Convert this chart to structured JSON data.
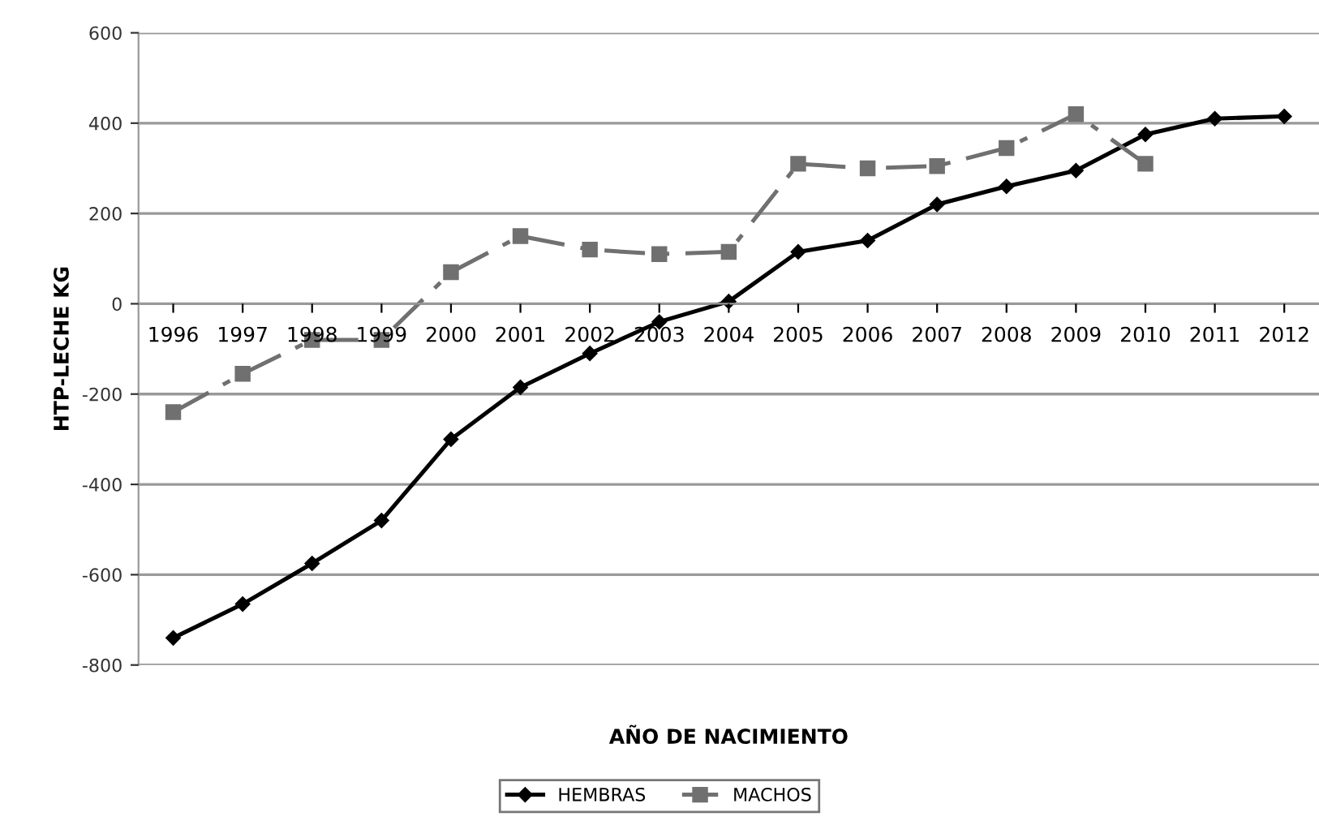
{
  "chart_data": {
    "type": "line",
    "xlabel": "AÑO DE NACIMIENTO",
    "ylabel": "HTP-LECHE KG",
    "categories": [
      "1996",
      "1997",
      "1998",
      "1999",
      "2000",
      "2001",
      "2002",
      "2003",
      "2004",
      "2005",
      "2006",
      "2007",
      "2008",
      "2009",
      "2010",
      "2011",
      "2012"
    ],
    "series": [
      {
        "name": "HEMBRAS",
        "color": "#000000",
        "marker": "diamond",
        "line_style": "solid",
        "values": [
          -740,
          -665,
          -575,
          -480,
          -300,
          -185,
          -110,
          -40,
          5,
          115,
          140,
          220,
          260,
          295,
          375,
          410,
          415
        ]
      },
      {
        "name": "MACHOS",
        "color": "#707070",
        "marker": "square",
        "line_style": "dashdot",
        "values": [
          -240,
          -155,
          -80,
          -80,
          70,
          150,
          120,
          110,
          115,
          310,
          300,
          305,
          345,
          420,
          310,
          null,
          null
        ]
      }
    ],
    "ylim": [
      -800,
      600
    ],
    "yticks": [
      -800,
      -600,
      -400,
      -200,
      0,
      200,
      400,
      600
    ],
    "grid": "y",
    "legend": "bottom"
  }
}
